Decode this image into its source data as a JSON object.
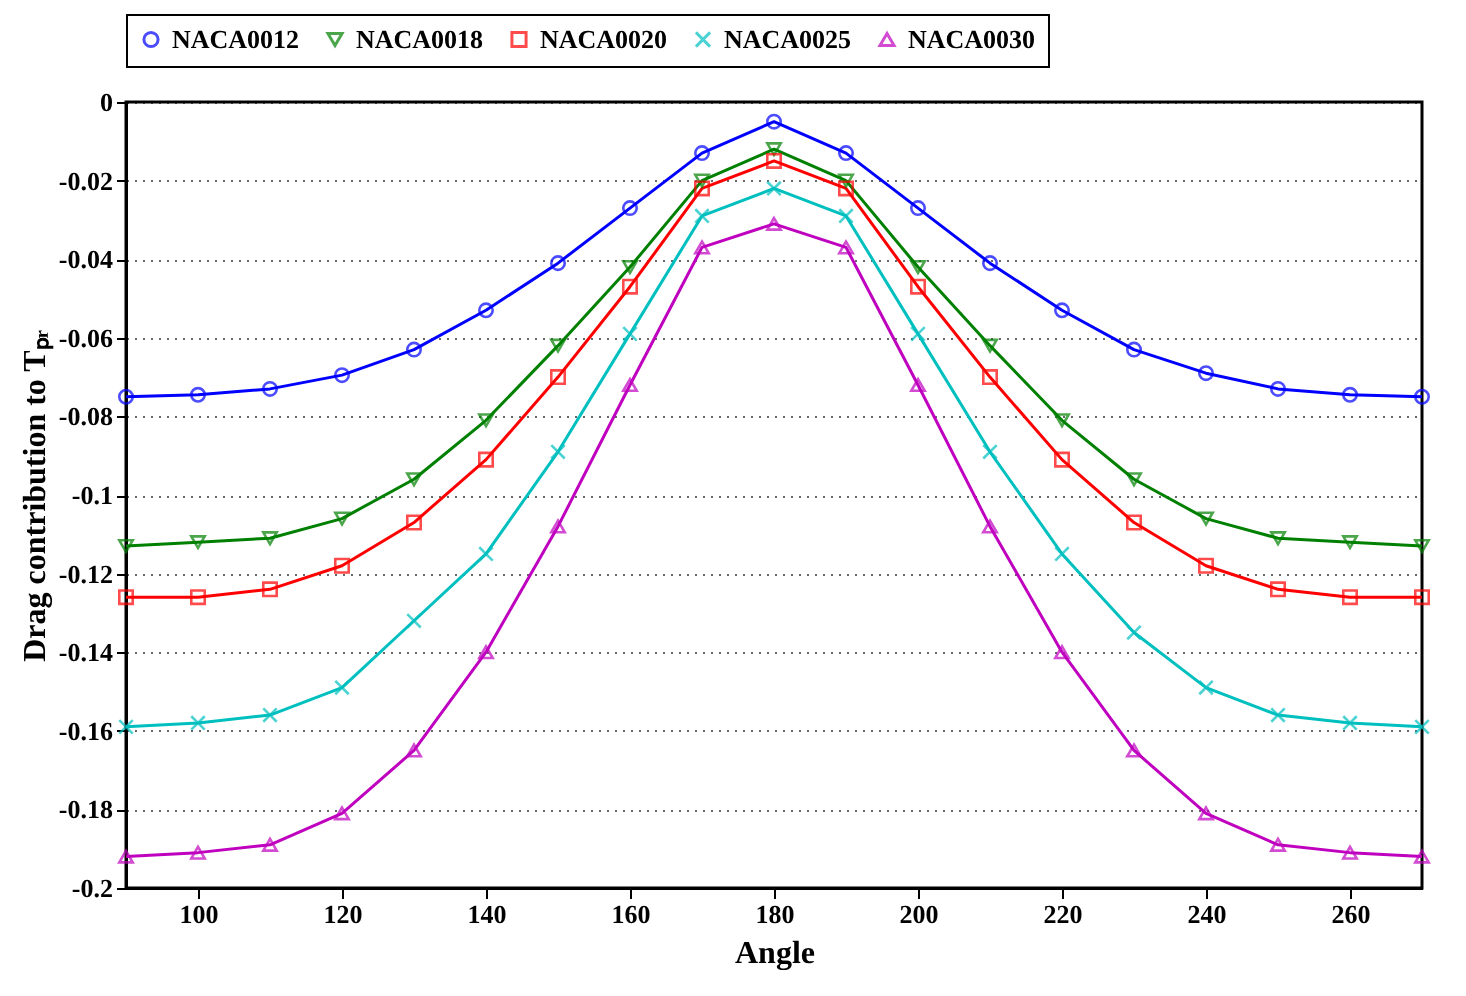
{
  "chart_data": {
    "type": "line",
    "xlabel": "Angle",
    "ylabel": "Drag contribution to Tₚᵣ",
    "x": [
      90,
      100,
      110,
      120,
      130,
      140,
      150,
      160,
      170,
      180,
      190,
      200,
      210,
      220,
      230,
      240,
      250,
      260,
      270
    ],
    "xlim": [
      90,
      270
    ],
    "xticks": [
      100,
      120,
      140,
      160,
      180,
      200,
      220,
      240,
      260
    ],
    "ylim": [
      -0.2,
      0
    ],
    "yticks": [
      -0.2,
      -0.18,
      -0.16,
      -0.14,
      -0.12,
      -0.1,
      -0.08,
      -0.06,
      -0.04,
      -0.02,
      0
    ],
    "grid": "y",
    "legend": "top",
    "series": [
      {
        "name": "NACA0012",
        "color": "#0000ff",
        "marker": "circle",
        "values": [
          -0.075,
          -0.0745,
          -0.073,
          -0.0695,
          -0.063,
          -0.053,
          -0.041,
          -0.027,
          -0.013,
          -0.005,
          -0.013,
          -0.027,
          -0.041,
          -0.053,
          -0.063,
          -0.069,
          -0.073,
          -0.0745,
          -0.075
        ]
      },
      {
        "name": "NACA0018",
        "color": "#008000",
        "marker": "triangle-down",
        "values": [
          -0.113,
          -0.112,
          -0.111,
          -0.106,
          -0.096,
          -0.081,
          -0.062,
          -0.042,
          -0.02,
          -0.012,
          -0.02,
          -0.042,
          -0.062,
          -0.081,
          -0.096,
          -0.106,
          -0.111,
          -0.112,
          -0.113
        ]
      },
      {
        "name": "NACA0020",
        "color": "#ff0000",
        "marker": "square",
        "values": [
          -0.126,
          -0.126,
          -0.124,
          -0.118,
          -0.107,
          -0.091,
          -0.07,
          -0.047,
          -0.022,
          -0.015,
          -0.022,
          -0.047,
          -0.07,
          -0.091,
          -0.107,
          -0.118,
          -0.124,
          -0.126,
          -0.126
        ]
      },
      {
        "name": "NACA0025",
        "color": "#00bfbf",
        "marker": "cross",
        "values": [
          -0.159,
          -0.158,
          -0.156,
          -0.149,
          -0.132,
          -0.115,
          -0.089,
          -0.059,
          -0.029,
          -0.022,
          -0.029,
          -0.059,
          -0.089,
          -0.115,
          -0.135,
          -0.149,
          -0.156,
          -0.158,
          -0.159
        ]
      },
      {
        "name": "NACA0030",
        "color": "#bf00bf",
        "marker": "triangle",
        "values": [
          -0.192,
          -0.191,
          -0.189,
          -0.181,
          -0.165,
          -0.14,
          -0.108,
          -0.072,
          -0.037,
          -0.031,
          -0.037,
          -0.072,
          -0.108,
          -0.14,
          -0.165,
          -0.181,
          -0.189,
          -0.191,
          -0.192
        ]
      }
    ]
  }
}
